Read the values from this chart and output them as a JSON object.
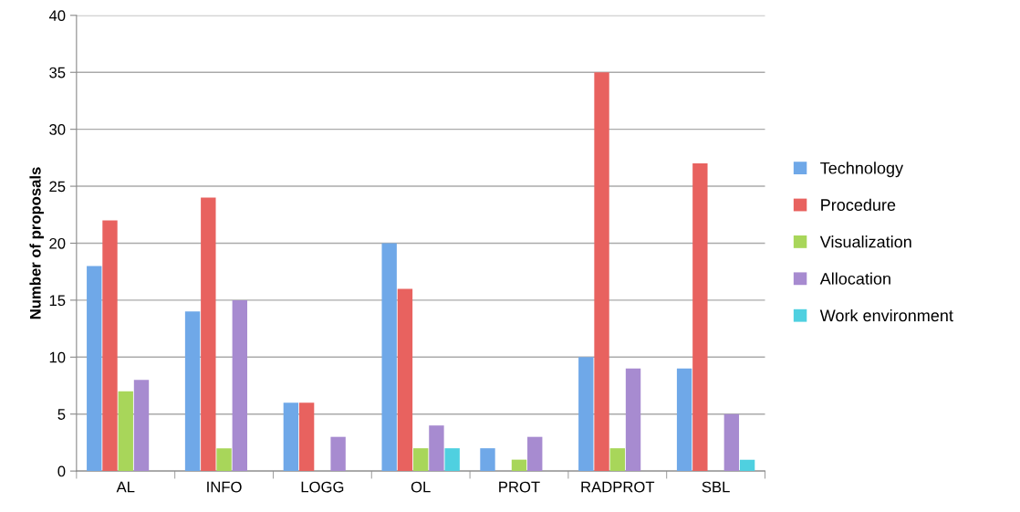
{
  "chart_data": {
    "type": "bar",
    "ylabel": "Number of proposals",
    "categories": [
      "AL",
      "INFO",
      "LOGG",
      "OL",
      "PROT",
      "RADPROT",
      "SBL"
    ],
    "series": [
      {
        "name": "Technology",
        "color": "#6fa8e8",
        "values": [
          18,
          14,
          6,
          20,
          2,
          10,
          9
        ]
      },
      {
        "name": "Procedure",
        "color": "#e8625f",
        "values": [
          22,
          24,
          6,
          16,
          0,
          35,
          27
        ]
      },
      {
        "name": "Visualization",
        "color": "#a8d65a",
        "values": [
          7,
          2,
          0,
          2,
          1,
          2,
          0
        ]
      },
      {
        "name": "Allocation",
        "color": "#a78bd0",
        "values": [
          8,
          15,
          3,
          4,
          3,
          9,
          5
        ]
      },
      {
        "name": "Work environment",
        "color": "#4fd0e0",
        "values": [
          0,
          0,
          0,
          2,
          0,
          0,
          1
        ]
      }
    ],
    "ylim": [
      0,
      40
    ],
    "yticks": [
      0,
      5,
      10,
      15,
      20,
      25,
      30,
      35,
      40
    ],
    "grid": "y",
    "legend": "right"
  }
}
